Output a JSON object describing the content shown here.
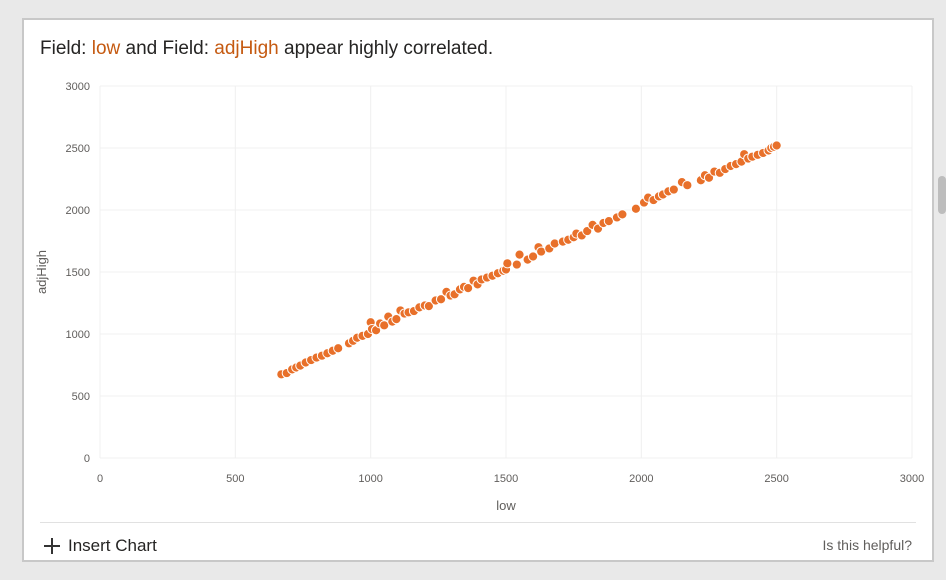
{
  "headline": {
    "prefix": "Field:",
    "field_x": "low",
    "middle": "and Field:",
    "field_y": "adjHigh",
    "suffix": "appear highly correlated."
  },
  "footer": {
    "insert_chart_label": "Insert Chart",
    "helpful_label": "Is this helpful?"
  },
  "colors": {
    "accent": "#c55a11",
    "point": "#e8702a",
    "grid": "#f0f0f0"
  },
  "chart_data": {
    "type": "scatter",
    "title": "",
    "xlabel": "low",
    "ylabel": "adjHigh",
    "xlim": [
      0,
      3000
    ],
    "ylim": [
      0,
      3000
    ],
    "x_ticks": [
      0,
      500,
      1000,
      1500,
      2000,
      2500,
      3000
    ],
    "y_ticks": [
      0,
      500,
      1000,
      1500,
      2000,
      2500,
      3000
    ],
    "grid": true,
    "series": [
      {
        "points": [
          [
            670,
            675
          ],
          [
            690,
            685
          ],
          [
            710,
            715
          ],
          [
            725,
            730
          ],
          [
            740,
            745
          ],
          [
            760,
            770
          ],
          [
            780,
            790
          ],
          [
            800,
            810
          ],
          [
            820,
            825
          ],
          [
            840,
            845
          ],
          [
            860,
            865
          ],
          [
            880,
            885
          ],
          [
            920,
            925
          ],
          [
            935,
            945
          ],
          [
            950,
            970
          ],
          [
            970,
            985
          ],
          [
            990,
            1000
          ],
          [
            1000,
            1095
          ],
          [
            1005,
            1040
          ],
          [
            1020,
            1030
          ],
          [
            1035,
            1085
          ],
          [
            1050,
            1070
          ],
          [
            1065,
            1140
          ],
          [
            1080,
            1100
          ],
          [
            1095,
            1120
          ],
          [
            1110,
            1190
          ],
          [
            1125,
            1165
          ],
          [
            1140,
            1175
          ],
          [
            1160,
            1185
          ],
          [
            1180,
            1215
          ],
          [
            1200,
            1230
          ],
          [
            1215,
            1225
          ],
          [
            1240,
            1270
          ],
          [
            1260,
            1280
          ],
          [
            1280,
            1340
          ],
          [
            1295,
            1310
          ],
          [
            1310,
            1320
          ],
          [
            1330,
            1360
          ],
          [
            1345,
            1380
          ],
          [
            1360,
            1370
          ],
          [
            1380,
            1430
          ],
          [
            1395,
            1400
          ],
          [
            1410,
            1440
          ],
          [
            1430,
            1455
          ],
          [
            1450,
            1470
          ],
          [
            1470,
            1490
          ],
          [
            1490,
            1510
          ],
          [
            1500,
            1520
          ],
          [
            1505,
            1570
          ],
          [
            1540,
            1560
          ],
          [
            1550,
            1640
          ],
          [
            1580,
            1600
          ],
          [
            1600,
            1625
          ],
          [
            1620,
            1700
          ],
          [
            1630,
            1665
          ],
          [
            1660,
            1690
          ],
          [
            1680,
            1730
          ],
          [
            1710,
            1745
          ],
          [
            1730,
            1760
          ],
          [
            1750,
            1780
          ],
          [
            1760,
            1810
          ],
          [
            1780,
            1795
          ],
          [
            1800,
            1830
          ],
          [
            1820,
            1880
          ],
          [
            1840,
            1850
          ],
          [
            1860,
            1895
          ],
          [
            1880,
            1910
          ],
          [
            1910,
            1940
          ],
          [
            1930,
            1965
          ],
          [
            1980,
            2010
          ],
          [
            2010,
            2060
          ],
          [
            2025,
            2100
          ],
          [
            2045,
            2080
          ],
          [
            2065,
            2110
          ],
          [
            2080,
            2125
          ],
          [
            2100,
            2150
          ],
          [
            2120,
            2165
          ],
          [
            2150,
            2225
          ],
          [
            2170,
            2200
          ],
          [
            2220,
            2240
          ],
          [
            2235,
            2280
          ],
          [
            2250,
            2260
          ],
          [
            2270,
            2310
          ],
          [
            2290,
            2300
          ],
          [
            2310,
            2330
          ],
          [
            2330,
            2355
          ],
          [
            2350,
            2370
          ],
          [
            2370,
            2390
          ],
          [
            2380,
            2450
          ],
          [
            2395,
            2415
          ],
          [
            2410,
            2430
          ],
          [
            2430,
            2445
          ],
          [
            2450,
            2460
          ],
          [
            2470,
            2480
          ],
          [
            2480,
            2500
          ],
          [
            2490,
            2510
          ],
          [
            2500,
            2520
          ]
        ]
      }
    ]
  }
}
